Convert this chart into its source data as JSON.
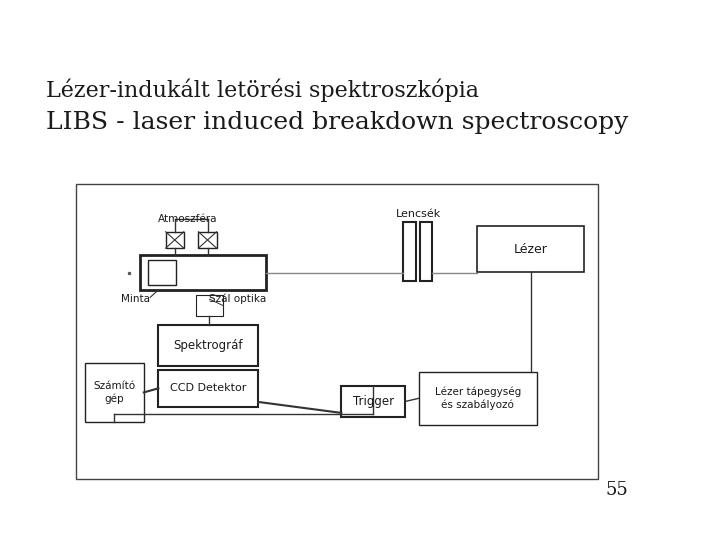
{
  "title1": "Lézer-indukált letörési spektroszkópia",
  "title2": "LIBS - laser induced breakdown spectroscopy",
  "page_number": "55",
  "bg_color": "#ffffff",
  "text_color": "#1a1a1a",
  "title1_fontsize": 16,
  "title2_fontsize": 18,
  "page_num_fontsize": 13
}
